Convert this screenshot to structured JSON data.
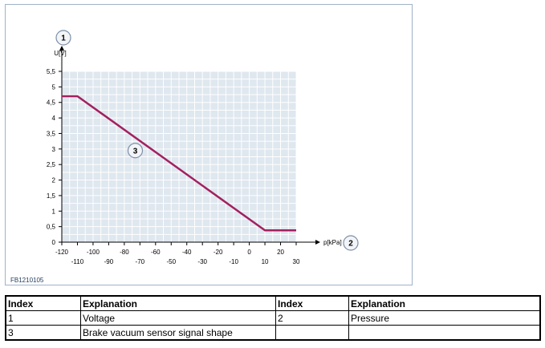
{
  "figure": {
    "id": "FB1210105"
  },
  "chart_data": {
    "type": "line",
    "xlabel": "p[kPa]",
    "ylabel": "U[V]",
    "xlim": [
      -120,
      30
    ],
    "ylim": [
      0,
      5.5
    ],
    "x_ticks_top": [
      "-120",
      "-100",
      "-80",
      "-60",
      "-40",
      "-20",
      "0",
      "20"
    ],
    "x_ticks_bottom": [
      "-110",
      "-90",
      "-70",
      "-50",
      "-30",
      "-10",
      "10",
      "30"
    ],
    "y_ticks": [
      "0",
      "0,5",
      "1",
      "1,5",
      "2",
      "2,5",
      "3",
      "3,5",
      "4",
      "4,5",
      "5",
      "5,5"
    ],
    "grid": true,
    "series": [
      {
        "x": [
          -120,
          -110,
          10,
          30
        ],
        "y": [
          4.7,
          4.7,
          0.38,
          0.38
        ],
        "color": "#a3205f"
      }
    ],
    "callouts": {
      "y_axis": "1",
      "x_axis": "2",
      "curve": "3"
    }
  },
  "legend_table": {
    "headers": [
      "Index",
      "Explanation",
      "Index",
      "Explanation"
    ],
    "rows": [
      [
        "1",
        "Voltage",
        "2",
        "Pressure"
      ],
      [
        "3",
        "Brake vacuum sensor signal shape",
        "",
        ""
      ]
    ]
  }
}
